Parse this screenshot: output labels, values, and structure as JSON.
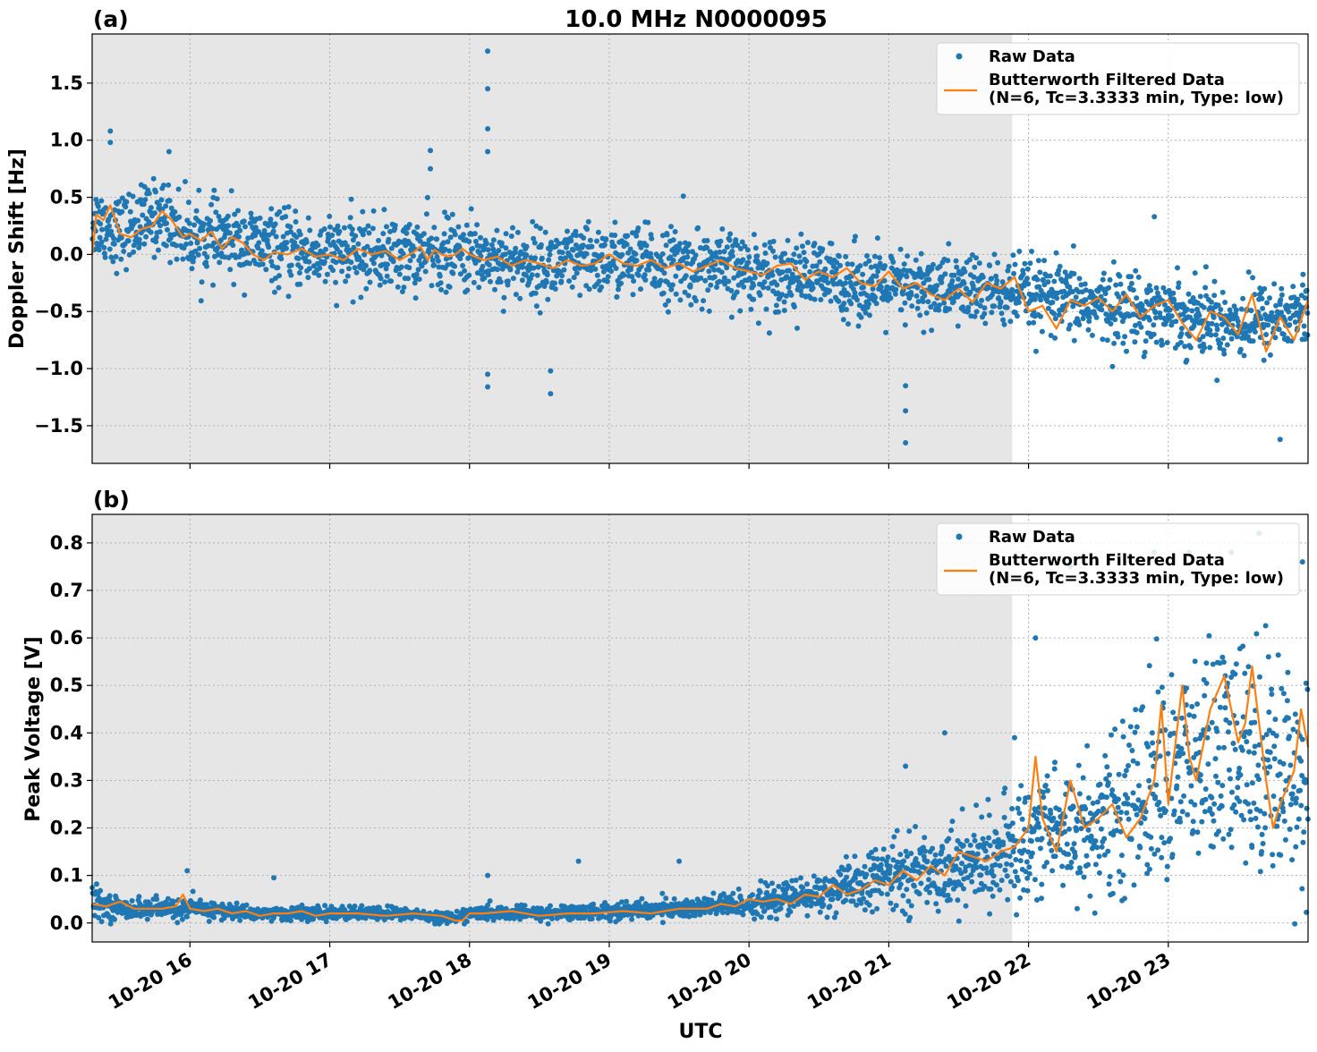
{
  "title": "10.0 MHz N0000095",
  "colors": {
    "raw": "#1f77b4",
    "filtered": "#ff7f0e",
    "night_shade": "#e6e6e6",
    "grid": "#b0b0b0"
  },
  "chart_data": [
    {
      "type": "scatter",
      "panel_label": "(a)",
      "ylabel": "Doppler Shift [Hz]",
      "xlabel": "",
      "x_ticks": [
        "10-20 16",
        "10-20 17",
        "10-20 18",
        "10-20 19",
        "10-20 20",
        "10-20 21",
        "10-20 22",
        "10-20 23"
      ],
      "x_tick_labels_visible": false,
      "xlim": [
        "15:18",
        "24:00"
      ],
      "ylim": [
        -1.83,
        1.93
      ],
      "y_ticks": [
        -1.5,
        -1.0,
        -0.5,
        0.0,
        0.5,
        1.0,
        1.5
      ],
      "y_tick_labels": [
        "−1.5",
        "−1.0",
        "−0.5",
        "0.0",
        "0.5",
        "1.0",
        "1.5"
      ],
      "grid": true,
      "legend_position": "top-right",
      "shaded_span": {
        "from": "15:18",
        "to": "21:53"
      },
      "series": [
        {
          "name": "Raw Data",
          "style": "points",
          "approx_center": [
            [
              15.3,
              0.3
            ],
            [
              15.5,
              0.2
            ],
            [
              15.8,
              0.35
            ],
            [
              16.0,
              0.15
            ],
            [
              16.3,
              0.12
            ],
            [
              16.6,
              0.05
            ],
            [
              17.0,
              0.0
            ],
            [
              17.5,
              0.0
            ],
            [
              17.8,
              0.0
            ],
            [
              18.0,
              0.0
            ],
            [
              18.5,
              -0.1
            ],
            [
              19.0,
              -0.05
            ],
            [
              19.5,
              -0.1
            ],
            [
              20.0,
              -0.15
            ],
            [
              20.5,
              -0.2
            ],
            [
              21.0,
              -0.3
            ],
            [
              21.5,
              -0.3
            ],
            [
              21.9,
              -0.35
            ],
            [
              22.5,
              -0.45
            ],
            [
              23.0,
              -0.5
            ],
            [
              23.5,
              -0.6
            ],
            [
              24.0,
              -0.5
            ]
          ],
          "approx_spread_hz": 0.35,
          "outliers": [
            [
              15.43,
              1.08
            ],
            [
              15.43,
              0.98
            ],
            [
              15.85,
              0.9
            ],
            [
              17.72,
              0.91
            ],
            [
              17.72,
              0.75
            ],
            [
              18.13,
              1.78
            ],
            [
              18.13,
              1.45
            ],
            [
              18.13,
              1.1
            ],
            [
              18.13,
              0.9
            ],
            [
              18.13,
              -1.05
            ],
            [
              18.13,
              -1.16
            ],
            [
              18.58,
              -1.02
            ],
            [
              18.58,
              -1.22
            ],
            [
              19.53,
              0.51
            ],
            [
              21.12,
              -1.15
            ],
            [
              21.12,
              -1.37
            ],
            [
              21.12,
              -1.65
            ],
            [
              23.8,
              -1.62
            ],
            [
              22.9,
              0.33
            ]
          ]
        },
        {
          "name": "Butterworth Filtered Data\n(N=6, Tc=3.3333 min, Type: low)",
          "style": "line",
          "x": [
            15.3,
            15.33,
            15.38,
            15.43,
            15.5,
            15.58,
            15.65,
            15.73,
            15.8,
            15.87,
            15.95,
            16.0,
            16.08,
            16.15,
            16.23,
            16.3,
            16.38,
            16.45,
            16.53,
            16.6,
            16.7,
            16.8,
            16.9,
            17.0,
            17.1,
            17.2,
            17.3,
            17.4,
            17.5,
            17.6,
            17.65,
            17.7,
            17.75,
            17.8,
            17.85,
            17.9,
            17.95,
            18.0,
            18.1,
            18.2,
            18.3,
            18.4,
            18.5,
            18.6,
            18.7,
            18.8,
            18.9,
            19.0,
            19.1,
            19.2,
            19.3,
            19.4,
            19.5,
            19.6,
            19.7,
            19.8,
            19.9,
            20.0,
            20.1,
            20.2,
            20.3,
            20.4,
            20.5,
            20.6,
            20.7,
            20.8,
            20.9,
            21.0,
            21.1,
            21.2,
            21.3,
            21.4,
            21.5,
            21.6,
            21.7,
            21.8,
            21.9,
            22.0,
            22.1,
            22.2,
            22.3,
            22.4,
            22.5,
            22.6,
            22.7,
            22.8,
            22.9,
            23.0,
            23.1,
            23.2,
            23.3,
            23.4,
            23.5,
            23.6,
            23.7,
            23.8,
            23.9,
            24.0
          ],
          "y": [
            0.0,
            0.35,
            0.3,
            0.43,
            0.18,
            0.15,
            0.22,
            0.25,
            0.38,
            0.3,
            0.15,
            0.18,
            0.12,
            0.2,
            0.05,
            0.15,
            0.1,
            0.0,
            -0.05,
            0.02,
            0.0,
            0.05,
            -0.02,
            0.0,
            -0.05,
            0.05,
            0.0,
            0.03,
            -0.05,
            0.02,
            0.07,
            -0.05,
            0.04,
            0.0,
            -0.02,
            0.0,
            0.05,
            0.0,
            -0.05,
            -0.02,
            -0.1,
            -0.05,
            -0.08,
            -0.12,
            -0.05,
            -0.1,
            -0.08,
            0.0,
            -0.08,
            -0.1,
            -0.05,
            -0.12,
            -0.08,
            -0.15,
            -0.1,
            -0.05,
            -0.12,
            -0.15,
            -0.18,
            -0.1,
            -0.08,
            -0.22,
            -0.15,
            -0.2,
            -0.12,
            -0.25,
            -0.28,
            -0.15,
            -0.3,
            -0.25,
            -0.35,
            -0.4,
            -0.3,
            -0.42,
            -0.25,
            -0.3,
            -0.2,
            -0.5,
            -0.45,
            -0.65,
            -0.4,
            -0.45,
            -0.38,
            -0.5,
            -0.35,
            -0.55,
            -0.45,
            -0.4,
            -0.6,
            -0.75,
            -0.5,
            -0.55,
            -0.7,
            -0.35,
            -0.85,
            -0.55,
            -0.75,
            -0.4
          ]
        }
      ]
    },
    {
      "type": "scatter",
      "panel_label": "(b)",
      "ylabel": "Peak Voltage [V]",
      "xlabel": "UTC",
      "x_ticks": [
        "10-20 16",
        "10-20 17",
        "10-20 18",
        "10-20 19",
        "10-20 20",
        "10-20 21",
        "10-20 22",
        "10-20 23"
      ],
      "x_tick_labels_visible": true,
      "xlim": [
        "15:18",
        "24:00"
      ],
      "ylim": [
        -0.04,
        0.86
      ],
      "y_ticks": [
        0.0,
        0.1,
        0.2,
        0.3,
        0.4,
        0.5,
        0.6,
        0.7,
        0.8
      ],
      "y_tick_labels": [
        "0.0",
        "0.1",
        "0.2",
        "0.3",
        "0.4",
        "0.5",
        "0.6",
        "0.7",
        "0.8"
      ],
      "grid": true,
      "legend_position": "top-right",
      "shaded_span": {
        "from": "15:18",
        "to": "21:53"
      },
      "series": [
        {
          "name": "Raw Data",
          "style": "points",
          "approx_center": [
            [
              15.3,
              0.045
            ],
            [
              15.5,
              0.03
            ],
            [
              16.0,
              0.03
            ],
            [
              16.5,
              0.02
            ],
            [
              17.0,
              0.02
            ],
            [
              17.5,
              0.02
            ],
            [
              17.9,
              0.01
            ],
            [
              18.0,
              0.02
            ],
            [
              18.5,
              0.02
            ],
            [
              19.0,
              0.025
            ],
            [
              19.5,
              0.03
            ],
            [
              20.0,
              0.04
            ],
            [
              20.5,
              0.06
            ],
            [
              20.8,
              0.08
            ],
            [
              21.0,
              0.1
            ],
            [
              21.5,
              0.12
            ],
            [
              21.9,
              0.15
            ],
            [
              22.1,
              0.2
            ],
            [
              22.5,
              0.2
            ],
            [
              22.9,
              0.3
            ],
            [
              23.1,
              0.32
            ],
            [
              23.4,
              0.35
            ],
            [
              23.7,
              0.35
            ],
            [
              24.0,
              0.3
            ]
          ],
          "approx_spread_v_rel": 0.35,
          "outliers": [
            [
              15.98,
              0.11
            ],
            [
              16.6,
              0.095
            ],
            [
              18.13,
              0.1
            ],
            [
              18.78,
              0.13
            ],
            [
              19.5,
              0.13
            ],
            [
              21.12,
              0.33
            ],
            [
              21.4,
              0.4
            ],
            [
              21.9,
              0.39
            ],
            [
              22.05,
              0.6
            ],
            [
              22.3,
              0.75
            ],
            [
              22.9,
              0.78
            ],
            [
              23.15,
              0.78
            ],
            [
              23.45,
              0.78
            ],
            [
              23.65,
              0.82
            ],
            [
              23.96,
              0.76
            ]
          ]
        },
        {
          "name": "Butterworth Filtered Data\n(N=6, Tc=3.3333 min, Type: low)",
          "style": "line",
          "x": [
            15.3,
            15.4,
            15.5,
            15.6,
            15.7,
            15.8,
            15.9,
            15.95,
            16.0,
            16.1,
            16.2,
            16.3,
            16.4,
            16.5,
            16.6,
            16.7,
            16.8,
            16.9,
            17.0,
            17.2,
            17.4,
            17.6,
            17.8,
            17.85,
            17.9,
            17.95,
            18.0,
            18.1,
            18.3,
            18.5,
            18.7,
            18.9,
            19.1,
            19.3,
            19.5,
            19.7,
            19.8,
            19.9,
            20.0,
            20.1,
            20.2,
            20.3,
            20.4,
            20.5,
            20.6,
            20.7,
            20.8,
            20.9,
            21.0,
            21.1,
            21.2,
            21.3,
            21.4,
            21.5,
            21.6,
            21.7,
            21.8,
            21.9,
            21.95,
            22.0,
            22.05,
            22.1,
            22.2,
            22.3,
            22.4,
            22.5,
            22.6,
            22.7,
            22.8,
            22.9,
            22.95,
            23.0,
            23.1,
            23.15,
            23.2,
            23.3,
            23.4,
            23.45,
            23.5,
            23.55,
            23.6,
            23.7,
            23.75,
            23.8,
            23.9,
            23.95,
            24.0
          ],
          "y": [
            0.04,
            0.035,
            0.045,
            0.03,
            0.03,
            0.03,
            0.035,
            0.06,
            0.03,
            0.025,
            0.03,
            0.02,
            0.025,
            0.015,
            0.02,
            0.02,
            0.025,
            0.015,
            0.02,
            0.02,
            0.015,
            0.02,
            0.015,
            0.01,
            0.005,
            0.005,
            0.02,
            0.02,
            0.025,
            0.015,
            0.02,
            0.02,
            0.025,
            0.02,
            0.03,
            0.03,
            0.04,
            0.035,
            0.05,
            0.045,
            0.05,
            0.04,
            0.06,
            0.055,
            0.08,
            0.06,
            0.07,
            0.09,
            0.08,
            0.11,
            0.09,
            0.12,
            0.1,
            0.15,
            0.14,
            0.13,
            0.15,
            0.16,
            0.18,
            0.2,
            0.35,
            0.22,
            0.15,
            0.3,
            0.2,
            0.22,
            0.25,
            0.18,
            0.22,
            0.3,
            0.46,
            0.25,
            0.5,
            0.35,
            0.3,
            0.45,
            0.52,
            0.45,
            0.38,
            0.42,
            0.54,
            0.3,
            0.2,
            0.25,
            0.32,
            0.45,
            0.37
          ]
        }
      ]
    }
  ]
}
